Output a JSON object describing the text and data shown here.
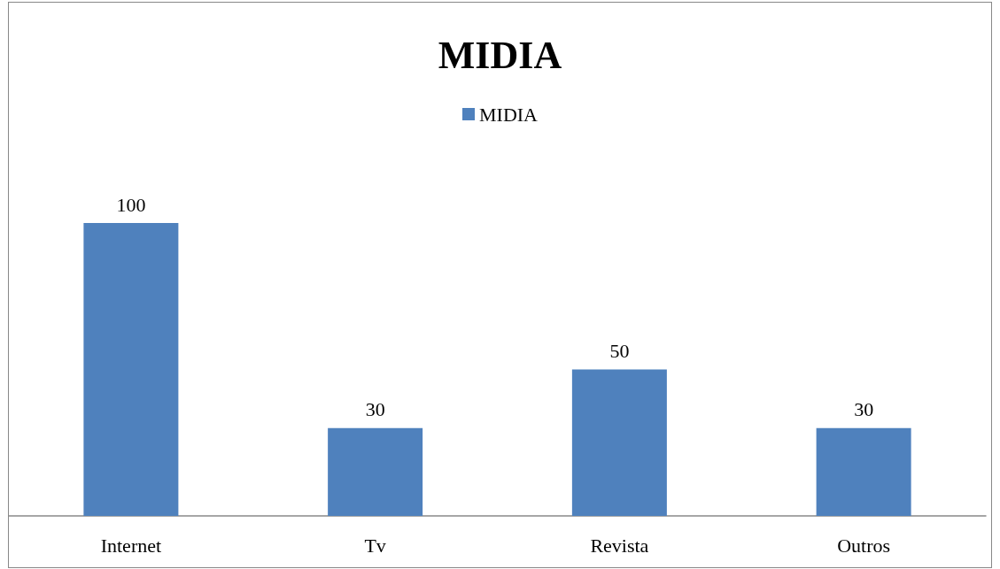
{
  "chart_data": {
    "type": "bar",
    "title": "MIDIA",
    "categories": [
      "Internet",
      "Tv",
      "Revista",
      "Outros"
    ],
    "series": [
      {
        "name": "MIDIA",
        "color": "#4f81bd",
        "values": [
          100,
          30,
          50,
          30
        ]
      }
    ],
    "data_labels": true,
    "legend": "top"
  }
}
